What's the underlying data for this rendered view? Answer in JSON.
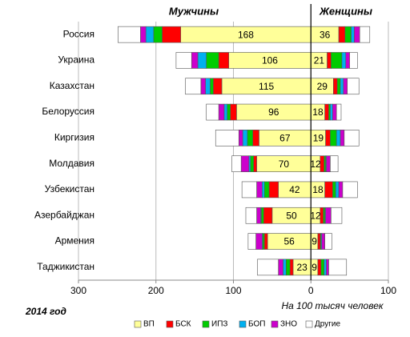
{
  "chart_data": {
    "type": "diverging_bar",
    "groups": [
      "Мужчины",
      "Женщины"
    ],
    "categories": [
      "Россия",
      "Украина",
      "Казахстан",
      "Белоруссия",
      "Киргизия",
      "Молдавия",
      "Узбекистан",
      "Азербайджан",
      "Армения",
      "Таджикистан"
    ],
    "series": [
      {
        "name": "ВП",
        "color": "#ffff99",
        "show_labels": true,
        "men": [
          168,
          106,
          115,
          96,
          67,
          70,
          42,
          50,
          56,
          23
        ],
        "women": [
          36,
          21,
          29,
          18,
          19,
          12,
          18,
          12,
          9,
          9
        ]
      },
      {
        "name": "БСК",
        "color": "#ff0000",
        "men": [
          24,
          13,
          11,
          8,
          8,
          4,
          12,
          11,
          4,
          4
        ],
        "women": [
          8,
          5,
          5,
          5,
          6,
          5,
          10,
          4,
          3,
          4
        ]
      },
      {
        "name": "ИПЗ",
        "color": "#00cc00",
        "men": [
          11,
          16,
          4,
          4,
          7,
          4,
          6,
          3,
          2,
          5
        ],
        "women": [
          8,
          14,
          4,
          2,
          8,
          2,
          4,
          2,
          1,
          4
        ]
      },
      {
        "name": "БОП",
        "color": "#00b0f0",
        "men": [
          10,
          11,
          6,
          4,
          6,
          2,
          3,
          1,
          1,
          4
        ],
        "women": [
          4,
          5,
          4,
          3,
          5,
          1,
          4,
          1,
          1,
          3
        ]
      },
      {
        "name": "ЗНО",
        "color": "#cc00cc",
        "men": [
          7,
          8,
          6,
          7,
          5,
          10,
          7,
          5,
          8,
          6
        ],
        "women": [
          7,
          5,
          5,
          5,
          5,
          5,
          5,
          7,
          4,
          3
        ]
      },
      {
        "name": "Другие",
        "color": "#ffffff",
        "men": [
          29,
          20,
          20,
          16,
          30,
          12,
          19,
          14,
          10,
          27
        ],
        "women": [
          13,
          10,
          15,
          6,
          19,
          10,
          19,
          14,
          9,
          23
        ]
      }
    ],
    "xlim": [
      -300,
      100
    ],
    "xticks": [
      {
        "value": -300,
        "label": "300"
      },
      {
        "value": -200,
        "label": "200"
      },
      {
        "value": -100,
        "label": "100"
      },
      0,
      100
    ],
    "grid": true,
    "xlabel": "На 100 тысяч человек",
    "note": "2014 год"
  }
}
